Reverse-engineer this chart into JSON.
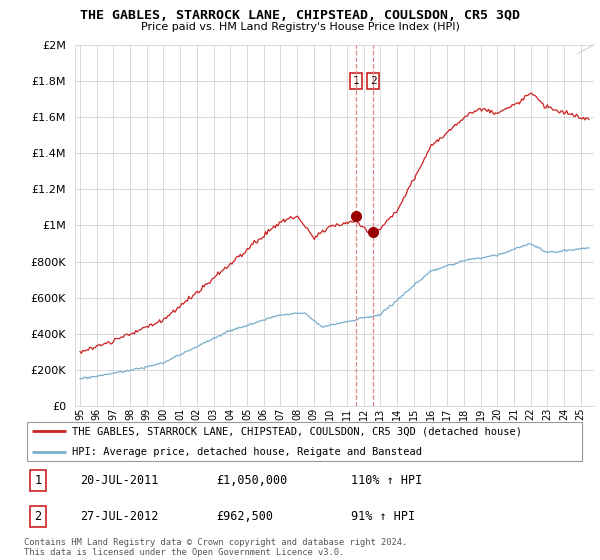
{
  "title": "THE GABLES, STARROCK LANE, CHIPSTEAD, COULSDON, CR5 3QD",
  "subtitle": "Price paid vs. HM Land Registry's House Price Index (HPI)",
  "legend_line1": "THE GABLES, STARROCK LANE, CHIPSTEAD, COULSDON, CR5 3QD (detached house)",
  "legend_line2": "HPI: Average price, detached house, Reigate and Banstead",
  "annotation1": [
    "1",
    "20-JUL-2011",
    "£1,050,000",
    "110% ↑ HPI"
  ],
  "annotation2": [
    "2",
    "27-JUL-2012",
    "£962,500",
    "91% ↑ HPI"
  ],
  "footer": "Contains HM Land Registry data © Crown copyright and database right 2024.\nThis data is licensed under the Open Government Licence v3.0.",
  "red_color": "#cc2222",
  "blue_color": "#7aadcc",
  "vline_color": "#dd8888",
  "ylim": [
    0,
    2000000
  ],
  "yticks": [
    0,
    200000,
    400000,
    600000,
    800000,
    1000000,
    1200000,
    1400000,
    1600000,
    1800000,
    2000000
  ],
  "xstart": 1995,
  "xend": 2025,
  "sale1_year": 2011.55,
  "sale2_year": 2012.57,
  "sale1_price": 1050000,
  "sale2_price": 962500
}
